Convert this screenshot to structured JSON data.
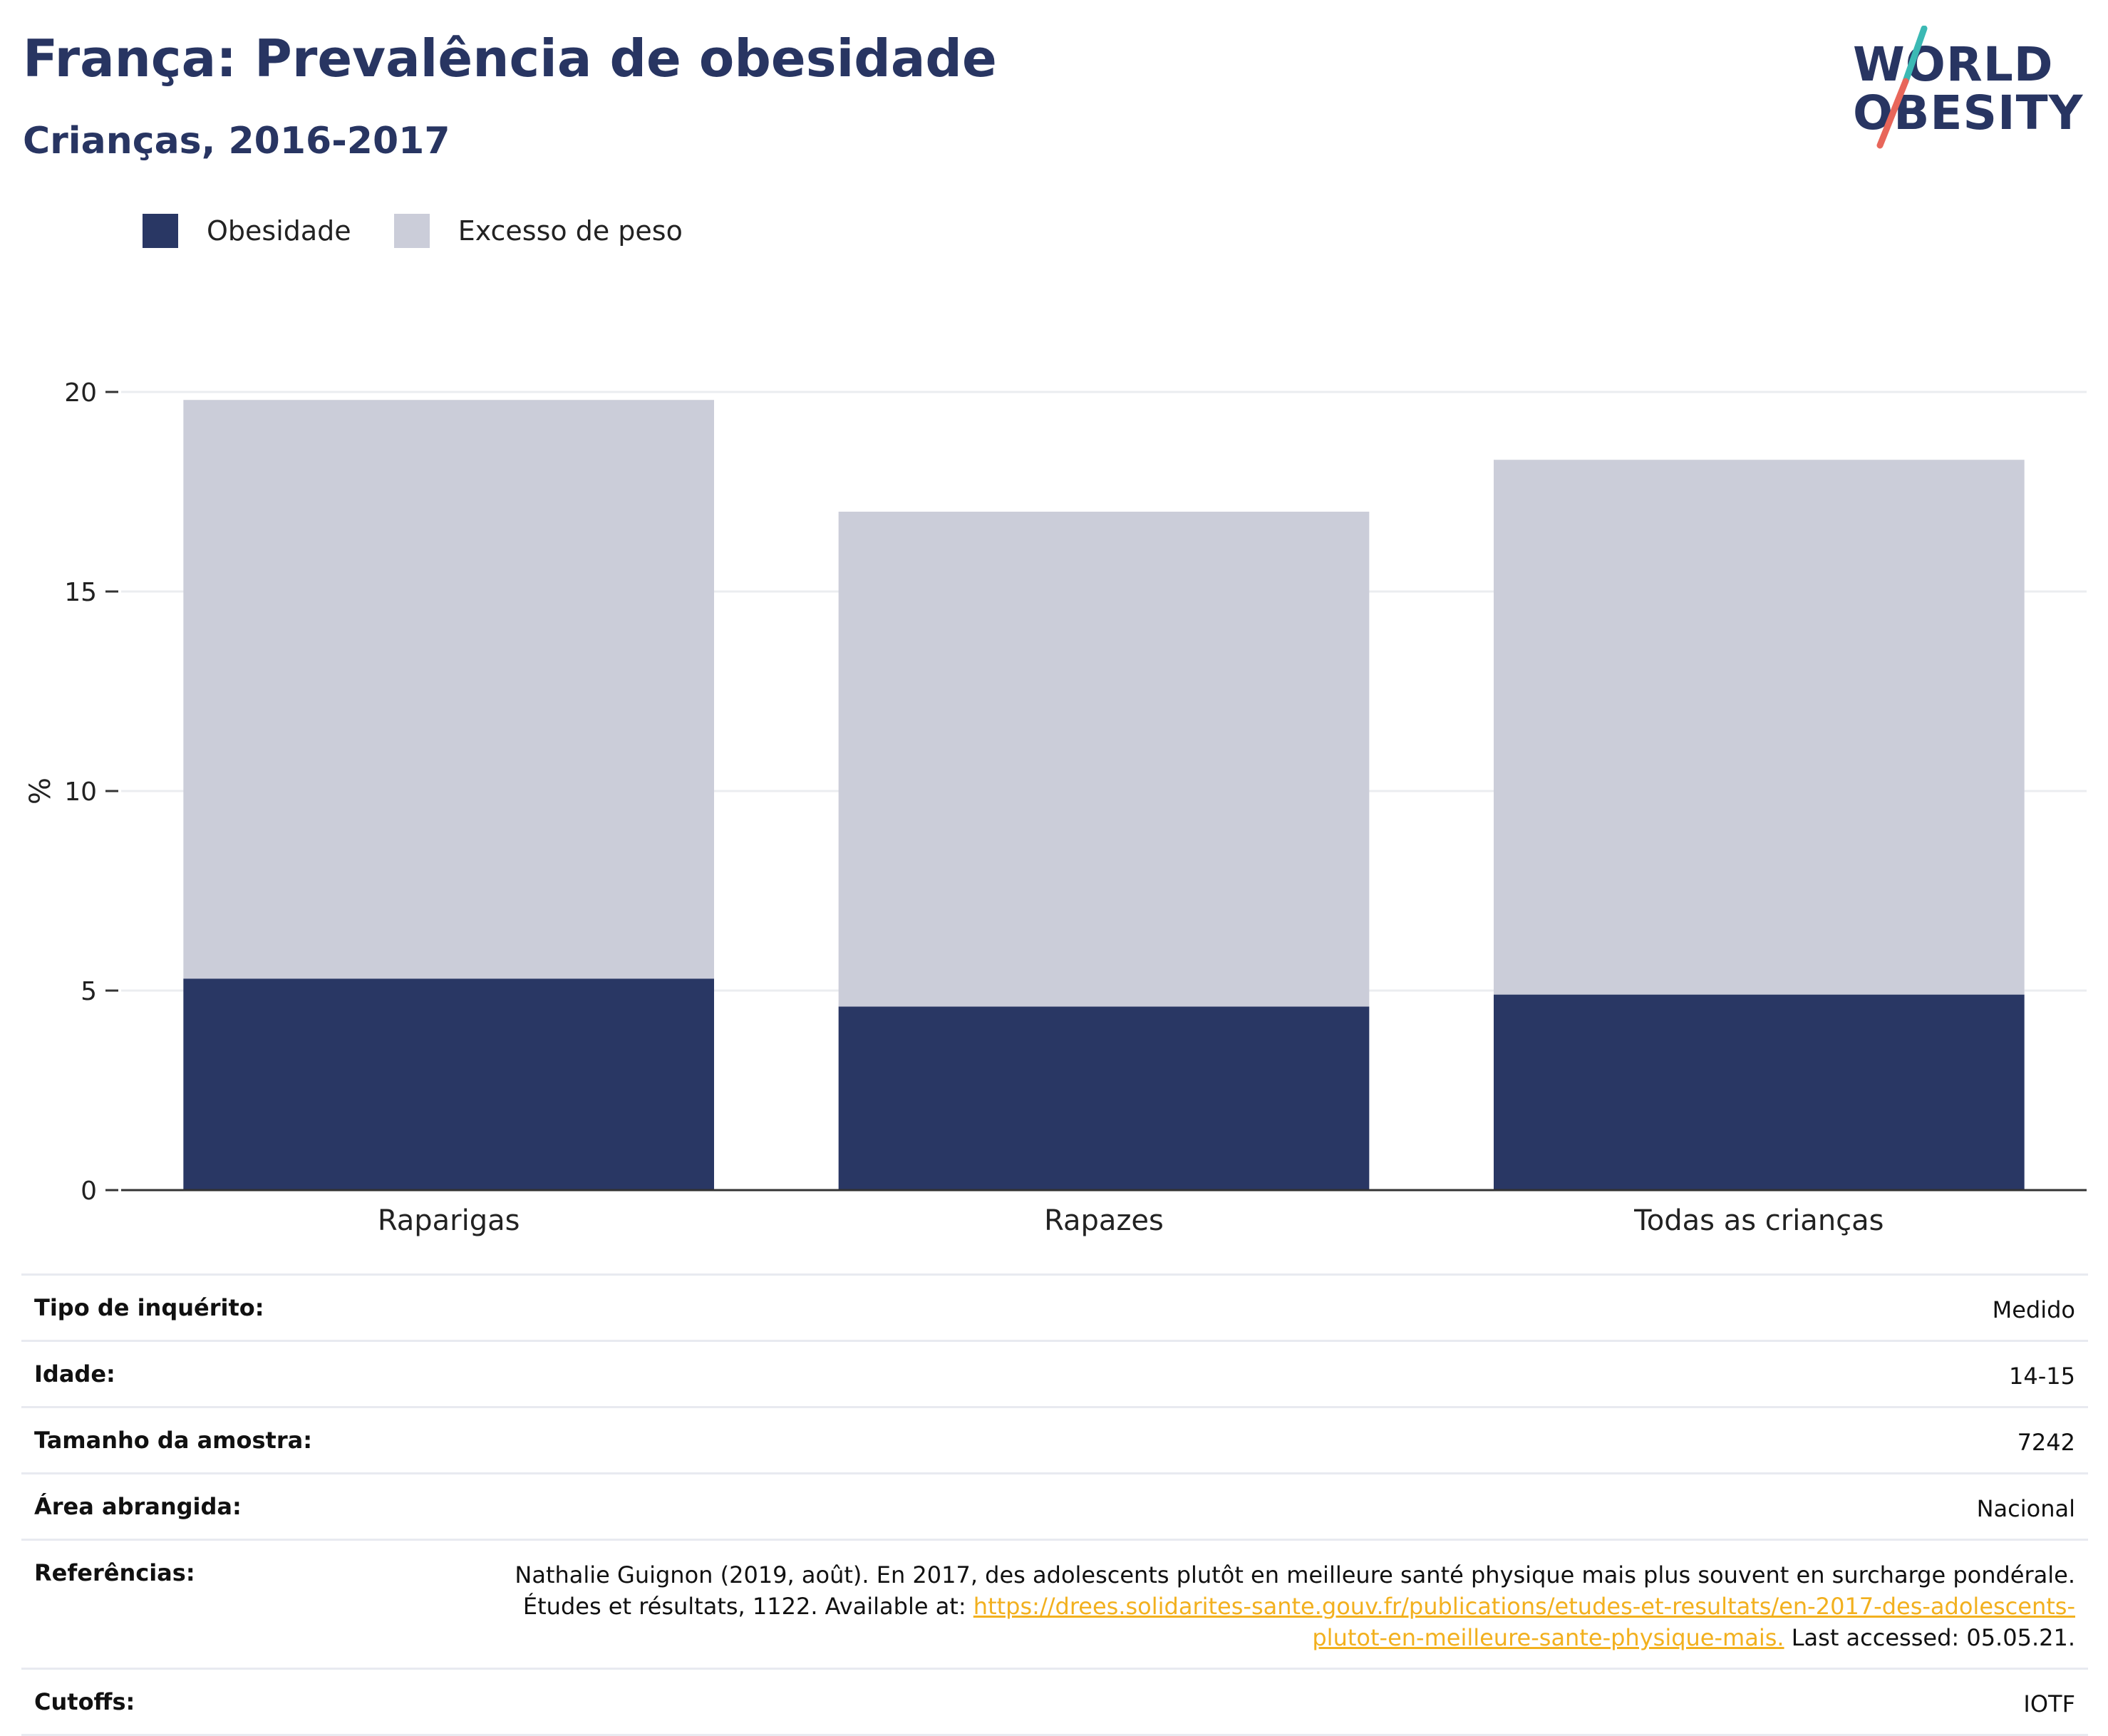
{
  "header": {
    "title": "França: Prevalência de obesidade",
    "subtitle": "Crianças, 2016-2017"
  },
  "logo": {
    "line1": "WORLD",
    "line2": "OBESITY",
    "colors": {
      "text": "#283562",
      "slash_top": "#3bb9b4",
      "slash_bottom": "#e8665a"
    }
  },
  "legend": {
    "items": [
      {
        "label": "Obesidade",
        "color": "#293764"
      },
      {
        "label": "Excesso de peso",
        "color": "#cbcdd9"
      }
    ]
  },
  "chart_data": {
    "type": "bar",
    "stacked": true,
    "categories": [
      "Raparigas",
      "Rapazes",
      "Todas as crianças"
    ],
    "series": [
      {
        "name": "Obesidade",
        "values": [
          5.3,
          4.6,
          4.9
        ],
        "color": "#293764"
      },
      {
        "name": "Excesso de peso",
        "values": [
          14.5,
          12.4,
          13.4
        ],
        "color": "#cbcdd9"
      }
    ],
    "ylabel": "%",
    "ylim": [
      0,
      20
    ],
    "yticks": [
      0,
      5,
      10,
      15,
      20
    ],
    "grid": true,
    "legend_position": "top-left"
  },
  "info": {
    "survey_type_label": "Tipo de inquérito:",
    "survey_type_value": "Medido",
    "age_label": "Idade:",
    "age_value": "14-15",
    "sample_label": "Tamanho da amostra:",
    "sample_value": "7242",
    "area_label": "Área abrangida:",
    "area_value": "Nacional",
    "refs_label": "Referências:",
    "refs_text_1": "Nathalie Guignon (2019, août). En 2017, des adolescents plutôt en meilleure santé physique mais plus souvent en surcharge pondérale. Études et résultats, 1122. Available at:",
    "refs_link": "https://drees.solidarites-sante.gouv.fr/publications/etudes-et-resultats/en-2017-des-adolescents-plutot-en-meilleure-sante-physique-mais.",
    "refs_text_2": "Last accessed: 05.05.21.",
    "cutoffs_label": "Cutoffs:",
    "cutoffs_value": "IOTF"
  }
}
